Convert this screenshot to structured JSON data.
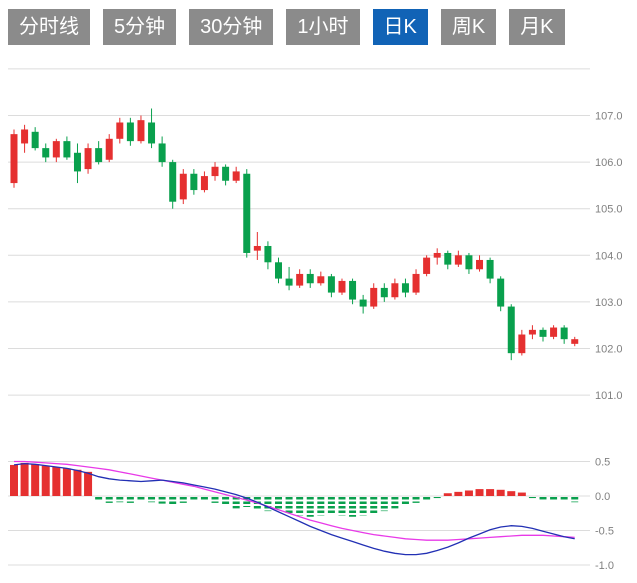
{
  "toolbar": {
    "tabs": [
      {
        "label": "分时线",
        "active": false
      },
      {
        "label": "5分钟",
        "active": false
      },
      {
        "label": "30分钟",
        "active": false
      },
      {
        "label": "1小时",
        "active": false
      },
      {
        "label": "日K",
        "active": true
      },
      {
        "label": "周K",
        "active": false
      },
      {
        "label": "月K",
        "active": false
      }
    ]
  },
  "colors": {
    "up": "#e53030",
    "down": "#09a04d",
    "tab_bg": "#8b8b8b",
    "tab_active_bg": "#1163b6",
    "grid": "#dcdcdc",
    "axis_text": "#808080",
    "dif_line": "#2230b4",
    "dea_line": "#e83ae8",
    "background": "#ffffff"
  },
  "chart_data": {
    "type": "candlestick",
    "title": "",
    "xlabel": "",
    "ylabel": "",
    "legend": [],
    "grid": true,
    "panels": [
      "price-candles",
      "macd"
    ],
    "price_axis": {
      "labels": [
        "107.0",
        "106.0",
        "105.0",
        "104.0",
        "103.0",
        "102.0",
        "101.0"
      ],
      "values": [
        107.0,
        106.0,
        105.0,
        104.0,
        103.0,
        102.0,
        101.0
      ],
      "gridline_values": [
        108,
        107,
        106,
        105,
        104,
        103,
        102,
        101
      ],
      "range": [
        100.8,
        108.0
      ]
    },
    "macd_axis": {
      "labels": [
        "0.5",
        "0.0",
        "-0.5",
        "-1.0"
      ],
      "values": [
        0.5,
        0.0,
        -0.5,
        -1.0
      ],
      "range": [
        -1.1,
        0.6
      ]
    },
    "candles_ohlc": [
      [
        105.55,
        106.7,
        105.45,
        106.6
      ],
      [
        106.4,
        106.8,
        106.2,
        106.7
      ],
      [
        106.65,
        106.75,
        106.25,
        106.3
      ],
      [
        106.3,
        106.4,
        106.0,
        106.1
      ],
      [
        106.1,
        106.5,
        106.0,
        106.45
      ],
      [
        106.45,
        106.55,
        106.05,
        106.1
      ],
      [
        106.2,
        106.4,
        105.55,
        105.8
      ],
      [
        105.85,
        106.4,
        105.75,
        106.3
      ],
      [
        106.3,
        106.45,
        105.95,
        106.0
      ],
      [
        106.05,
        106.6,
        106.0,
        106.5
      ],
      [
        106.5,
        106.95,
        106.4,
        106.85
      ],
      [
        106.85,
        106.95,
        106.35,
        106.45
      ],
      [
        106.45,
        107.0,
        106.4,
        106.9
      ],
      [
        106.85,
        107.15,
        106.3,
        106.4
      ],
      [
        106.4,
        106.55,
        105.9,
        106.0
      ],
      [
        106.0,
        106.05,
        105.0,
        105.15
      ],
      [
        105.2,
        105.85,
        105.1,
        105.75
      ],
      [
        105.75,
        105.85,
        105.3,
        105.4
      ],
      [
        105.4,
        105.8,
        105.35,
        105.7
      ],
      [
        105.7,
        106.0,
        105.6,
        105.9
      ],
      [
        105.9,
        105.95,
        105.5,
        105.6
      ],
      [
        105.6,
        105.9,
        105.55,
        105.8
      ],
      [
        105.75,
        105.85,
        103.95,
        104.05
      ],
      [
        104.1,
        104.5,
        103.9,
        104.2
      ],
      [
        104.2,
        104.3,
        103.7,
        103.85
      ],
      [
        103.85,
        103.95,
        103.4,
        103.5
      ],
      [
        103.5,
        103.75,
        103.25,
        103.35
      ],
      [
        103.35,
        103.7,
        103.3,
        103.6
      ],
      [
        103.6,
        103.7,
        103.3,
        103.4
      ],
      [
        103.4,
        103.65,
        103.35,
        103.55
      ],
      [
        103.55,
        103.6,
        103.1,
        103.2
      ],
      [
        103.2,
        103.5,
        103.15,
        103.45
      ],
      [
        103.45,
        103.5,
        102.95,
        103.05
      ],
      [
        103.05,
        103.15,
        102.75,
        102.9
      ],
      [
        102.9,
        103.4,
        102.85,
        103.3
      ],
      [
        103.3,
        103.4,
        103.0,
        103.1
      ],
      [
        103.1,
        103.5,
        103.05,
        103.4
      ],
      [
        103.4,
        103.5,
        103.1,
        103.2
      ],
      [
        103.2,
        103.7,
        103.15,
        103.6
      ],
      [
        103.6,
        104.0,
        103.55,
        103.95
      ],
      [
        103.95,
        104.15,
        103.8,
        104.05
      ],
      [
        104.05,
        104.1,
        103.7,
        103.8
      ],
      [
        103.8,
        104.1,
        103.75,
        104.0
      ],
      [
        104.0,
        104.05,
        103.6,
        103.7
      ],
      [
        103.7,
        104.0,
        103.65,
        103.9
      ],
      [
        103.9,
        103.95,
        103.4,
        103.5
      ],
      [
        103.5,
        103.55,
        102.8,
        102.9
      ],
      [
        102.9,
        102.95,
        101.75,
        101.9
      ],
      [
        101.9,
        102.4,
        101.85,
        102.3
      ],
      [
        102.3,
        102.5,
        102.2,
        102.4
      ],
      [
        102.4,
        102.45,
        102.15,
        102.25
      ],
      [
        102.25,
        102.5,
        102.2,
        102.45
      ],
      [
        102.45,
        102.5,
        102.1,
        102.2
      ],
      [
        102.1,
        102.25,
        102.05,
        102.2
      ]
    ],
    "macd_histogram": [
      0.45,
      0.48,
      0.46,
      0.44,
      0.42,
      0.4,
      0.38,
      0.35,
      -0.08,
      -0.1,
      -0.09,
      -0.1,
      -0.08,
      -0.09,
      -0.11,
      -0.12,
      -0.1,
      -0.08,
      -0.07,
      -0.1,
      -0.14,
      -0.18,
      -0.16,
      -0.2,
      -0.22,
      -0.2,
      -0.25,
      -0.28,
      -0.3,
      -0.28,
      -0.26,
      -0.28,
      -0.3,
      -0.28,
      -0.25,
      -0.22,
      -0.18,
      -0.14,
      -0.1,
      -0.06,
      -0.03,
      0.04,
      0.06,
      0.08,
      0.1,
      0.1,
      0.09,
      0.07,
      0.05,
      -0.03,
      -0.05,
      -0.07,
      -0.08,
      -0.09
    ],
    "dif_line": [
      0.45,
      0.47,
      0.46,
      0.44,
      0.42,
      0.4,
      0.37,
      0.33,
      0.28,
      0.25,
      0.23,
      0.22,
      0.21,
      0.22,
      0.23,
      0.21,
      0.19,
      0.16,
      0.13,
      0.1,
      0.06,
      0.02,
      -0.03,
      -0.09,
      -0.16,
      -0.23,
      -0.3,
      -0.37,
      -0.44,
      -0.5,
      -0.56,
      -0.61,
      -0.66,
      -0.71,
      -0.76,
      -0.8,
      -0.83,
      -0.85,
      -0.85,
      -0.83,
      -0.79,
      -0.74,
      -0.68,
      -0.61,
      -0.55,
      -0.49,
      -0.45,
      -0.43,
      -0.44,
      -0.47,
      -0.51,
      -0.55,
      -0.59,
      -0.62
    ],
    "dea_line": [
      0.5,
      0.5,
      0.49,
      0.48,
      0.47,
      0.46,
      0.44,
      0.42,
      0.4,
      0.38,
      0.35,
      0.32,
      0.29,
      0.26,
      0.23,
      0.2,
      0.17,
      0.14,
      0.1,
      0.06,
      0.02,
      -0.02,
      -0.06,
      -0.1,
      -0.15,
      -0.2,
      -0.25,
      -0.3,
      -0.35,
      -0.39,
      -0.43,
      -0.47,
      -0.5,
      -0.53,
      -0.56,
      -0.58,
      -0.6,
      -0.62,
      -0.63,
      -0.64,
      -0.64,
      -0.64,
      -0.63,
      -0.62,
      -0.61,
      -0.6,
      -0.59,
      -0.58,
      -0.57,
      -0.57,
      -0.57,
      -0.58,
      -0.59,
      -0.6
    ]
  }
}
